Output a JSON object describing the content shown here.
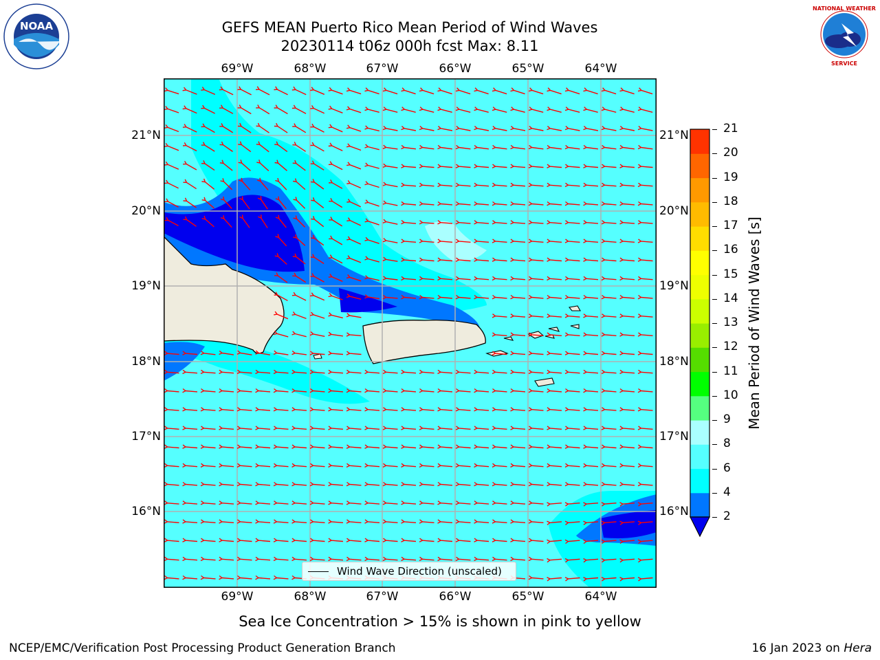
{
  "header": {
    "title_line1": "GEFS MEAN Puerto Rico Mean Period of Wind Waves",
    "title_line2": "20230114 t06z 000h fcst   Max: 8.11"
  },
  "logos": {
    "left": {
      "icon": "noaa-logo",
      "text": "NOAA"
    },
    "right": {
      "icon": "nws-logo",
      "text": "NATIONAL WEATHER SERVICE"
    }
  },
  "map": {
    "lon_labels": [
      "69°W",
      "68°W",
      "67°W",
      "66°W",
      "65°W",
      "64°W"
    ],
    "lat_labels": [
      "21°N",
      "20°N",
      "19°N",
      "18°N",
      "17°N",
      "16°N"
    ],
    "legend_label": "Wind Wave Direction (unscaled)",
    "colors": {
      "ocean_cyan_light": "#55ffff",
      "ocean_cyan": "#00ffff",
      "pale_cyan": "#aaffff",
      "blue": "#0077ff",
      "deep_blue": "#0000ee",
      "land": "#efecde",
      "arrow": "#ff0000",
      "grid": "#b0b0b0"
    }
  },
  "colorbar": {
    "label": "Mean Period of Wind Waves [s]",
    "ticks": [
      "2",
      "4",
      "6",
      "8",
      "9",
      "10",
      "11",
      "12",
      "13",
      "14",
      "15",
      "16",
      "17",
      "18",
      "19",
      "20",
      "21"
    ],
    "colors": [
      "#0077ff",
      "#00ffff",
      "#55ffff",
      "#aaffff",
      "#55ff80",
      "#00ff00",
      "#55dd00",
      "#99ee00",
      "#ccff00",
      "#eeff00",
      "#ffff00",
      "#ffdd00",
      "#ffbb00",
      "#ff9900",
      "#ff6600",
      "#ff3300",
      "#ff0000"
    ],
    "extend_color": "#0000ee"
  },
  "footer": {
    "note": "Sea Ice Concentration > 15% is shown in pink to yellow",
    "left": "NCEP/EMC/Verification Post Processing Product Generation Branch",
    "right_prefix": "16 Jan 2023 on ",
    "right_host": "Hera"
  }
}
